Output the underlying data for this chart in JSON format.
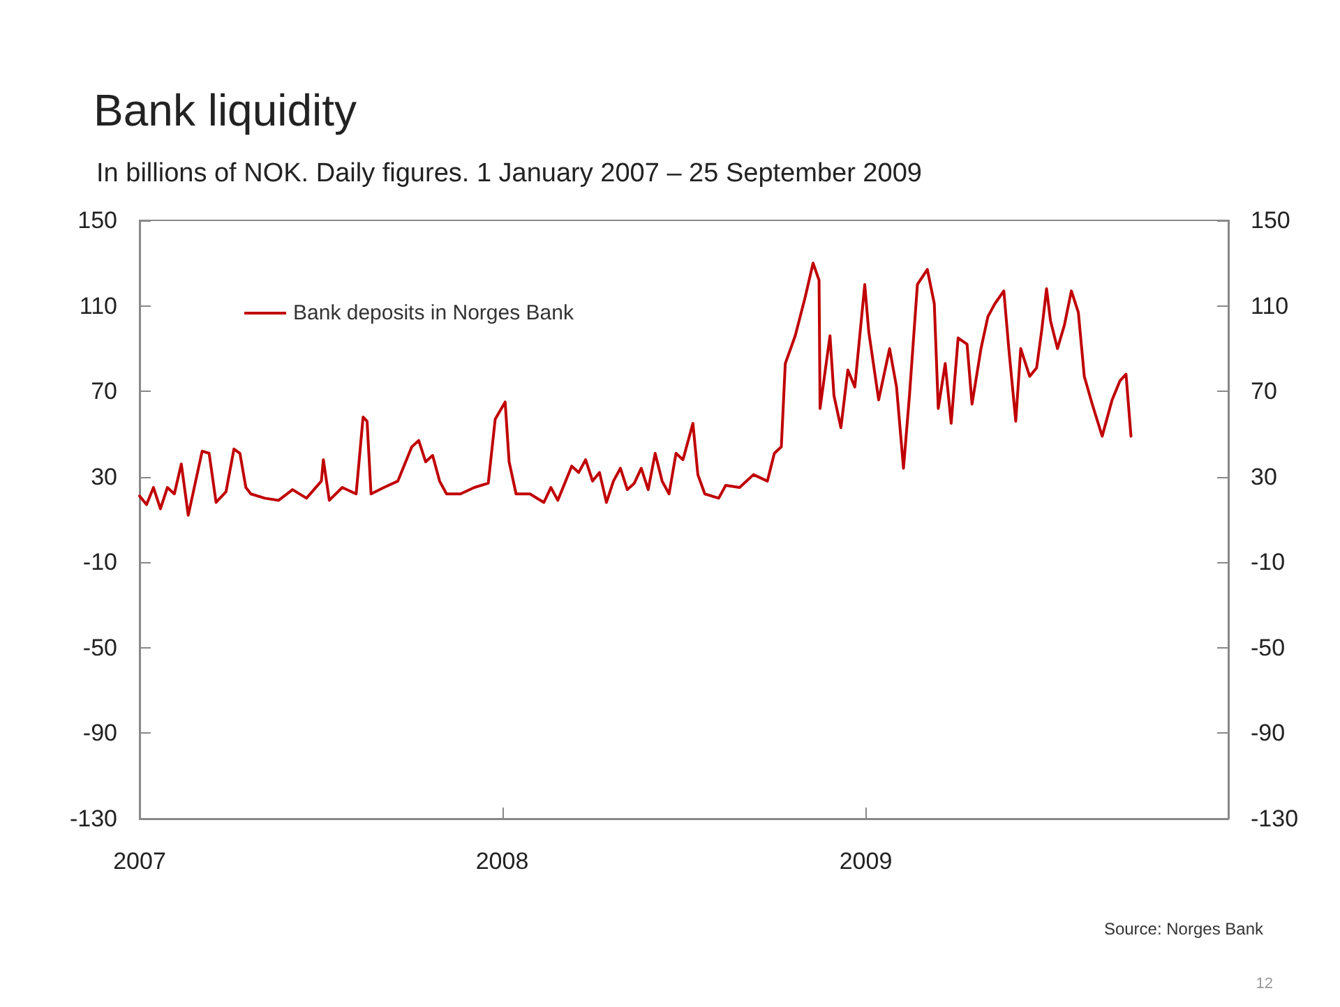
{
  "chart_data": {
    "type": "line",
    "title": "Bank liquidity",
    "subtitle": "In billions of NOK. Daily figures. 1 January 2007 – 25 September 2009",
    "annotations": [
      "Source: Norges Bank",
      "12"
    ],
    "x": [
      "2007-01-01",
      "2007-01-08",
      "2007-01-15",
      "2007-01-22",
      "2007-01-29",
      "2007-02-05",
      "2007-02-12",
      "2007-02-19",
      "2007-02-26",
      "2007-03-05",
      "2007-03-12",
      "2007-03-19",
      "2007-03-29",
      "2007-04-06",
      "2007-04-12",
      "2007-04-18",
      "2007-04-23",
      "2007-05-07",
      "2007-05-21",
      "2007-06-04",
      "2007-06-18",
      "2007-07-03",
      "2007-07-05",
      "2007-07-11",
      "2007-07-24",
      "2007-08-07",
      "2007-08-14",
      "2007-08-18",
      "2007-08-22",
      "2007-09-04",
      "2007-09-18",
      "2007-10-02",
      "2007-10-09",
      "2007-10-16",
      "2007-10-23",
      "2007-10-30",
      "2007-11-06",
      "2007-11-20",
      "2007-12-04",
      "2007-12-18",
      "2007-12-25",
      "2008-01-04",
      "2008-01-08",
      "2008-01-15",
      "2008-01-29",
      "2008-02-12",
      "2008-02-19",
      "2008-02-26",
      "2008-03-11",
      "2008-03-18",
      "2008-03-25",
      "2008-04-01",
      "2008-04-08",
      "2008-04-15",
      "2008-04-22",
      "2008-04-29",
      "2008-05-06",
      "2008-05-13",
      "2008-05-20",
      "2008-05-27",
      "2008-06-03",
      "2008-06-10",
      "2008-06-17",
      "2008-06-24",
      "2008-07-01",
      "2008-07-11",
      "2008-07-16",
      "2008-07-23",
      "2008-08-06",
      "2008-08-13",
      "2008-08-27",
      "2008-09-10",
      "2008-09-24",
      "2008-10-01",
      "2008-10-08",
      "2008-10-12",
      "2008-10-22",
      "2008-11-01",
      "2008-11-09",
      "2008-11-15",
      "2008-11-16",
      "2008-11-26",
      "2008-11-30",
      "2008-12-07",
      "2008-12-14",
      "2008-12-21",
      "2008-12-31",
      "2009-01-04",
      "2009-01-14",
      "2009-01-25",
      "2009-02-01",
      "2009-02-08",
      "2009-02-14",
      "2009-02-22",
      "2009-03-04",
      "2009-03-11",
      "2009-03-15",
      "2009-03-22",
      "2009-03-28",
      "2009-04-04",
      "2009-04-13",
      "2009-04-18",
      "2009-04-27",
      "2009-05-04",
      "2009-05-11",
      "2009-05-20",
      "2009-05-25",
      "2009-06-01",
      "2009-06-06",
      "2009-06-15",
      "2009-06-22",
      "2009-06-27",
      "2009-07-02",
      "2009-07-06",
      "2009-07-13",
      "2009-07-20",
      "2009-07-27",
      "2009-08-03",
      "2009-08-09",
      "2009-08-17",
      "2009-08-27",
      "2009-09-06",
      "2009-09-14",
      "2009-09-20",
      "2009-09-25"
    ],
    "series": [
      {
        "name": "Bank deposits in Norges Bank",
        "color": "#c00000",
        "values": [
          21,
          17,
          25,
          15,
          25,
          22,
          36,
          12,
          27,
          42,
          41,
          18,
          23,
          43,
          41,
          25,
          22,
          20,
          19,
          24,
          20,
          28,
          38,
          19,
          25,
          22,
          58,
          56,
          22,
          25,
          28,
          44,
          47,
          37,
          40,
          28,
          22,
          22,
          25,
          27,
          57,
          65,
          37,
          22,
          22,
          18,
          25,
          19,
          35,
          32,
          38,
          28,
          32,
          18,
          28,
          34,
          24,
          27,
          34,
          24,
          41,
          28,
          22,
          41,
          38,
          55,
          31,
          22,
          20,
          26,
          25,
          31,
          28,
          41,
          44,
          83,
          96,
          114,
          130,
          122,
          62,
          96,
          68,
          53,
          80,
          72,
          120,
          98,
          66,
          90,
          72,
          34,
          68,
          120,
          127,
          111,
          62,
          83,
          55,
          95,
          92,
          64,
          90,
          105,
          111,
          117,
          90,
          56,
          90,
          77,
          81,
          98,
          118,
          103,
          90,
          101,
          117,
          107,
          77,
          64,
          49,
          66,
          75,
          78,
          49
        ]
      }
    ],
    "xlim": [
      "2007-01-01",
      "2010-01-01"
    ],
    "xticks": [
      {
        "value": "2007-01-01",
        "label": "2007"
      },
      {
        "value": "2008-01-01",
        "label": "2008"
      },
      {
        "value": "2009-01-01",
        "label": "2009"
      }
    ],
    "ylim": [
      -130,
      150
    ],
    "yticks": [
      -130,
      -90,
      -50,
      -10,
      30,
      70,
      110,
      150
    ],
    "y2lim": [
      -130,
      150
    ],
    "y2ticks": [
      -130,
      -90,
      -50,
      -10,
      30,
      70,
      110,
      150
    ],
    "grid": false,
    "legend": "top left",
    "marker": "none",
    "line_style": "solid"
  }
}
